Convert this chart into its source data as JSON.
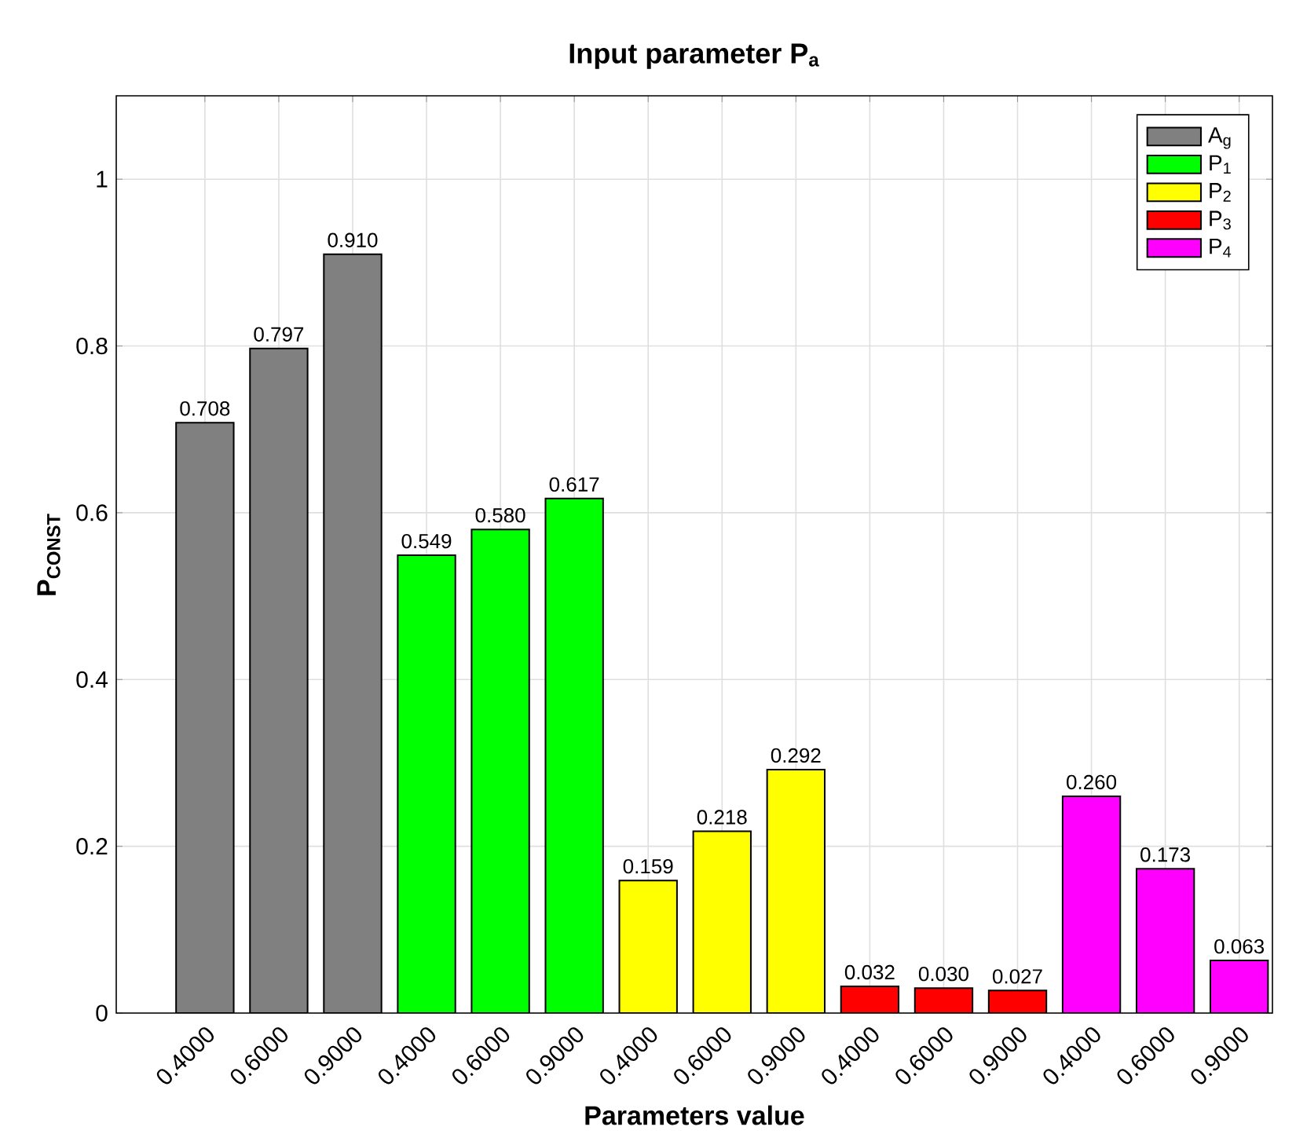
{
  "chart_data": {
    "type": "bar",
    "title": "Input parameter P$_{a}$",
    "xlabel": "Parameters value",
    "ylabel": "P$_{CONST}$",
    "categories": [
      "0.4000",
      "0.6000",
      "0.9000",
      "0.4000",
      "0.6000",
      "0.9000",
      "0.4000",
      "0.6000",
      "0.9000",
      "0.4000",
      "0.6000",
      "0.9000",
      "0.4000",
      "0.6000",
      "0.9000"
    ],
    "series": [
      {
        "name": "A$_{g}$",
        "color": "#808080",
        "values": [
          0.708,
          0.797,
          0.91,
          null,
          null,
          null,
          null,
          null,
          null,
          null,
          null,
          null,
          null,
          null,
          null
        ],
        "value_labels": [
          "0.708",
          "0.797",
          "0.910",
          null,
          null,
          null,
          null,
          null,
          null,
          null,
          null,
          null,
          null,
          null,
          null
        ]
      },
      {
        "name": "P$_{1}$",
        "color": "#00ff00",
        "values": [
          null,
          null,
          null,
          0.549,
          0.58,
          0.617,
          null,
          null,
          null,
          null,
          null,
          null,
          null,
          null,
          null
        ],
        "value_labels": [
          null,
          null,
          null,
          "0.549",
          "0.580",
          "0.617",
          null,
          null,
          null,
          null,
          null,
          null,
          null,
          null,
          null
        ]
      },
      {
        "name": "P$_{2}$",
        "color": "#ffff00",
        "values": [
          null,
          null,
          null,
          null,
          null,
          null,
          0.159,
          0.218,
          0.292,
          null,
          null,
          null,
          null,
          null,
          null
        ],
        "value_labels": [
          null,
          null,
          null,
          null,
          null,
          null,
          "0.159",
          "0.218",
          "0.292",
          null,
          null,
          null,
          null,
          null,
          null
        ]
      },
      {
        "name": "P$_{3}$",
        "color": "#ff0000",
        "values": [
          null,
          null,
          null,
          null,
          null,
          null,
          null,
          null,
          null,
          0.032,
          0.03,
          0.027,
          null,
          null,
          null
        ],
        "value_labels": [
          null,
          null,
          null,
          null,
          null,
          null,
          null,
          null,
          null,
          "0.032",
          "0.030",
          "0.027",
          null,
          null,
          null
        ]
      },
      {
        "name": "P$_{4}$",
        "color": "#ff00ff",
        "values": [
          null,
          null,
          null,
          null,
          null,
          null,
          null,
          null,
          null,
          null,
          null,
          null,
          0.26,
          0.173,
          0.063
        ],
        "value_labels": [
          null,
          null,
          null,
          null,
          null,
          null,
          null,
          null,
          null,
          null,
          null,
          null,
          "0.260",
          "0.173",
          "0.063"
        ]
      }
    ],
    "ylim": [
      0,
      1.1
    ],
    "yticks": [
      0,
      0.2,
      0.4,
      0.6,
      0.8,
      {
        "value": 1,
        "label": "1"
      }
    ],
    "grid": true,
    "legend": "top right"
  }
}
